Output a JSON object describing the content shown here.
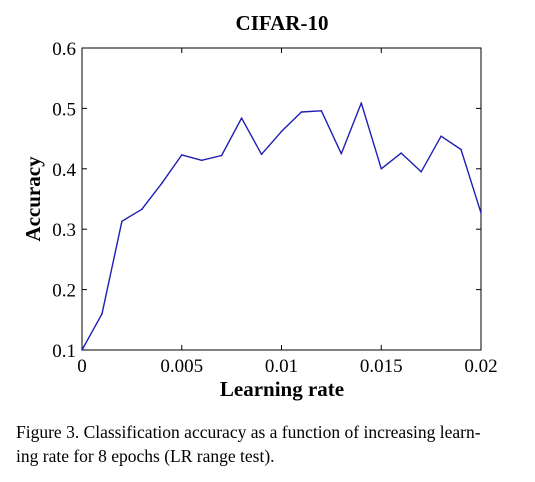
{
  "chart_data": {
    "type": "line",
    "title": "CIFAR-10",
    "xlabel": "Learning rate",
    "ylabel": "Accuracy",
    "xlim": [
      0,
      0.02
    ],
    "ylim": [
      0.1,
      0.6
    ],
    "x_ticks": [
      "0",
      "0.005",
      "0.01",
      "0.015",
      "0.02"
    ],
    "y_ticks": [
      "0.1",
      "0.2",
      "0.3",
      "0.4",
      "0.5",
      "0.6"
    ],
    "grid": false,
    "line_color": "#1f1fb4",
    "series": [
      {
        "x": [
          0,
          0.001,
          0.002,
          0.003,
          0.004,
          0.005,
          0.006,
          0.007,
          0.008,
          0.009,
          0.01,
          0.011,
          0.012,
          0.013,
          0.014,
          0.015,
          0.016,
          0.017,
          0.018,
          0.019,
          0.02
        ],
        "values": [
          0.1,
          0.16,
          0.313,
          0.333,
          0.376,
          0.423,
          0.414,
          0.422,
          0.484,
          0.424,
          0.462,
          0.494,
          0.496,
          0.425,
          0.509,
          0.4,
          0.426,
          0.395,
          0.454,
          0.432,
          0.327
        ]
      }
    ]
  },
  "caption": {
    "line1": "Figure 3. Classification accuracy as a function of increasing learn-",
    "line2": "ing rate for 8 epochs (LR range test)."
  }
}
